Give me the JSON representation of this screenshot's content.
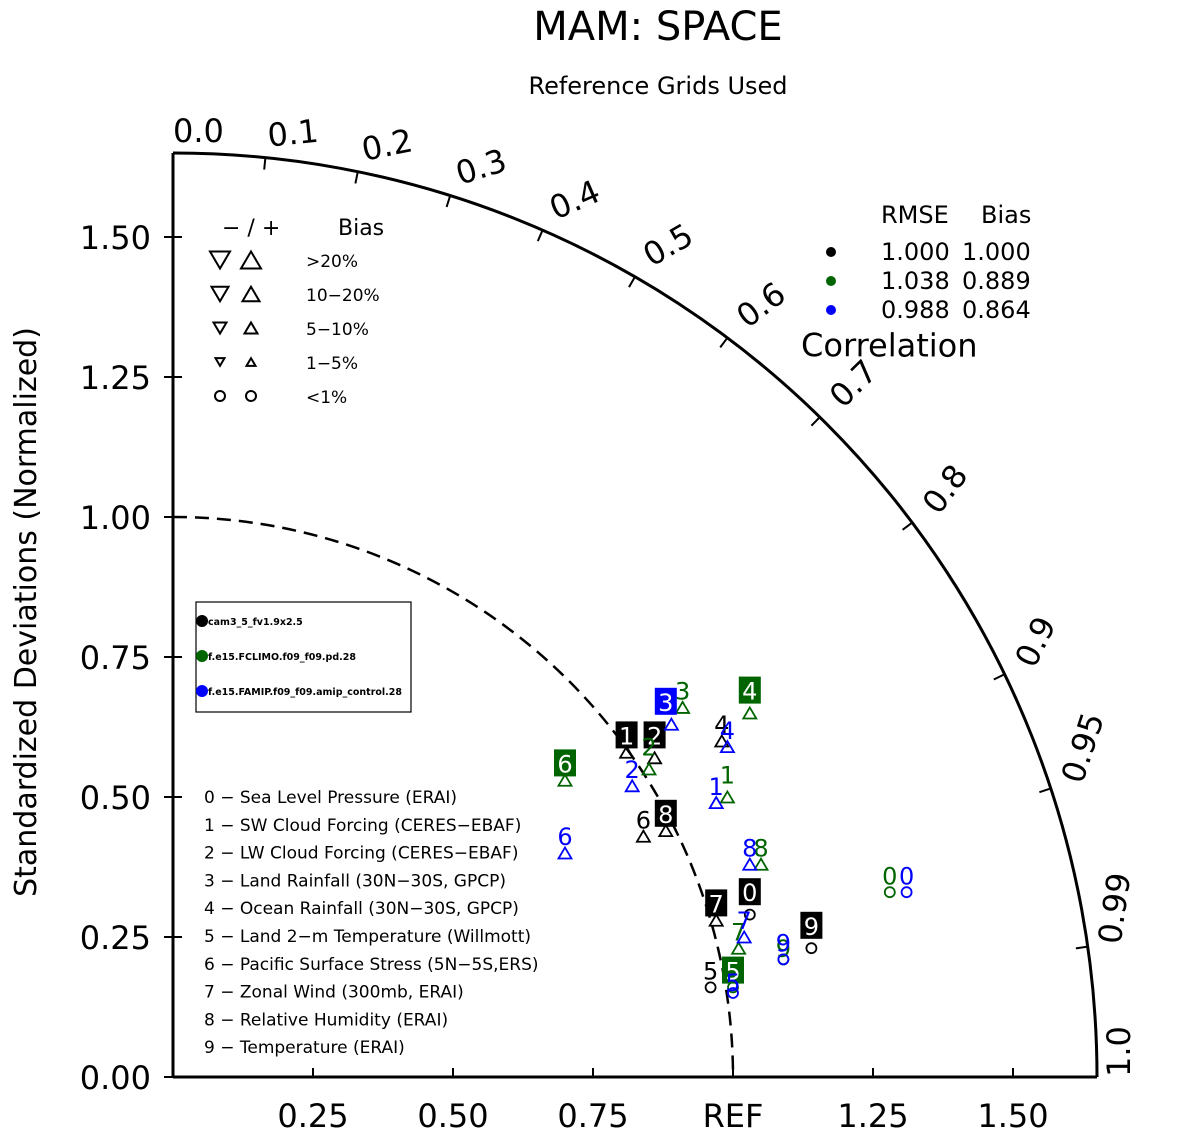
{
  "chart_data": {
    "type": "taylor",
    "title": "MAM: SPACE",
    "subtitle": "Reference Grids Used",
    "ylabel": "Standardized Deviations (Normalized)",
    "correlation_label": "Correlation",
    "ref_label": "REF",
    "std_range": [
      0,
      1.65
    ],
    "y_ticks": [
      "0.00",
      "0.25",
      "0.50",
      "0.75",
      "1.00",
      "1.25",
      "1.50"
    ],
    "x_ticks": [
      "0.25",
      "0.50",
      "0.75",
      "REF",
      "1.25",
      "1.50"
    ],
    "correlation_ticks": [
      "0.0",
      "0.1",
      "0.2",
      "0.3",
      "0.4",
      "0.5",
      "0.6",
      "0.7",
      "0.8",
      "0.9",
      "0.95",
      "0.99",
      "1.0"
    ],
    "bias_legend": {
      "header_signs": "− / +",
      "header_bias": "Bias",
      "rows": [
        {
          "label": ">20%",
          "shape": "triangle",
          "size": "xl"
        },
        {
          "label": "10−20%",
          "shape": "triangle",
          "size": "l"
        },
        {
          "label": "5−10%",
          "shape": "triangle",
          "size": "m"
        },
        {
          "label": "1−5%",
          "shape": "triangle",
          "size": "s"
        },
        {
          "label": "<1%",
          "shape": "circle",
          "size": "m"
        }
      ]
    },
    "rmse_table": {
      "header_rmse": "RMSE",
      "header_bias": "Bias",
      "rows": [
        {
          "color": "#000000",
          "rmse": "1.000",
          "bias": "1.000"
        },
        {
          "color": "#006400",
          "rmse": "1.038",
          "bias": "0.889"
        },
        {
          "color": "#0000ff",
          "rmse": "0.988",
          "bias": "0.864"
        }
      ]
    },
    "case_legend": [
      {
        "name": "cam3_5_fv1.9x2.5",
        "color": "#000000"
      },
      {
        "name": "f.e15.FCLIMO.f09_f09.pd.28",
        "color": "#006400"
      },
      {
        "name": "f.e15.FAMIP.f09_f09.amip_control.28",
        "color": "#0000ff"
      }
    ],
    "variables": [
      "0 − Sea Level Pressure (ERAI)",
      "1 − SW Cloud Forcing (CERES−EBAF)",
      "2 − LW Cloud Forcing (CERES−EBAF)",
      "3 − Land Rainfall (30N−30S, GPCP)",
      "4 − Ocean Rainfall (30N−30S, GPCP)",
      "5 − Land 2−m Temperature (Willmott)",
      "6 − Pacific Surface Stress (5N−5S,ERS)",
      "7 − Zonal Wind (300mb, ERAI)",
      "8 − Relative Humidity (ERAI)",
      "9 − Temperature (ERAI)"
    ],
    "points": [
      {
        "case": 0,
        "var": "0",
        "x": 1.03,
        "y": 0.33,
        "boxed": true,
        "marker": "circle",
        "mx": 1.03,
        "my": 0.29
      },
      {
        "case": 0,
        "var": "1",
        "x": 0.81,
        "y": 0.61,
        "boxed": true,
        "marker": "tri-up",
        "mx": 0.81,
        "my": 0.58
      },
      {
        "case": 0,
        "var": "2",
        "x": 0.86,
        "y": 0.61,
        "boxed": true,
        "marker": "tri-up",
        "mx": 0.86,
        "my": 0.57
      },
      {
        "case": 0,
        "var": "4",
        "x": 0.98,
        "y": 0.63,
        "boxed": false,
        "marker": "tri-up",
        "mx": 0.98,
        "my": 0.6
      },
      {
        "case": 0,
        "var": "5",
        "x": 0.96,
        "y": 0.19,
        "boxed": false,
        "marker": "circle",
        "mx": 0.96,
        "my": 0.16
      },
      {
        "case": 0,
        "var": "6",
        "x": 0.84,
        "y": 0.46,
        "boxed": false,
        "marker": "tri-up",
        "mx": 0.84,
        "my": 0.43
      },
      {
        "case": 0,
        "var": "7",
        "x": 0.97,
        "y": 0.31,
        "boxed": true,
        "marker": "tri-up",
        "mx": 0.97,
        "my": 0.28
      },
      {
        "case": 0,
        "var": "8",
        "x": 0.88,
        "y": 0.47,
        "boxed": true,
        "marker": "tri-up",
        "mx": 0.88,
        "my": 0.44
      },
      {
        "case": 0,
        "var": "9",
        "x": 1.14,
        "y": 0.27,
        "boxed": true,
        "marker": "circle",
        "mx": 1.14,
        "my": 0.23
      },
      {
        "case": 1,
        "var": "2",
        "x": 0.85,
        "y": 0.59,
        "boxed": false,
        "marker": "tri-up",
        "mx": 0.85,
        "my": 0.55
      },
      {
        "case": 1,
        "var": "3",
        "x": 0.91,
        "y": 0.69,
        "boxed": false,
        "marker": "tri-up",
        "mx": 0.91,
        "my": 0.66
      },
      {
        "case": 1,
        "var": "4",
        "x": 1.03,
        "y": 0.69,
        "boxed": true,
        "marker": "tri-up",
        "mx": 1.03,
        "my": 0.65
      },
      {
        "case": 1,
        "var": "6",
        "x": 0.7,
        "y": 0.56,
        "boxed": true,
        "marker": "tri-up",
        "mx": 0.7,
        "my": 0.53
      },
      {
        "case": 1,
        "var": "1",
        "x": 0.99,
        "y": 0.54,
        "boxed": false,
        "marker": "tri-up",
        "mx": 0.99,
        "my": 0.5
      },
      {
        "case": 1,
        "var": "8",
        "x": 1.05,
        "y": 0.41,
        "boxed": false,
        "marker": "tri-up",
        "mx": 1.05,
        "my": 0.38
      },
      {
        "case": 1,
        "var": "7",
        "x": 1.01,
        "y": 0.26,
        "boxed": false,
        "marker": "tri-up",
        "mx": 1.01,
        "my": 0.23
      },
      {
        "case": 1,
        "var": "5",
        "x": 1.0,
        "y": 0.19,
        "boxed": true,
        "marker": "circle",
        "mx": 1.0,
        "my": 0.16
      },
      {
        "case": 1,
        "var": "9",
        "x": 1.09,
        "y": 0.23,
        "boxed": false,
        "marker": "circle",
        "mx": 1.09,
        "my": 0.21
      },
      {
        "case": 1,
        "var": "0",
        "x": 1.28,
        "y": 0.36,
        "boxed": false,
        "marker": "circle",
        "mx": 1.28,
        "my": 0.33
      },
      {
        "case": 2,
        "var": "3",
        "x": 0.88,
        "y": 0.67,
        "boxed": true,
        "marker": "tri-up",
        "mx": 0.89,
        "my": 0.63
      },
      {
        "case": 2,
        "var": "2",
        "x": 0.82,
        "y": 0.55,
        "boxed": false,
        "marker": "tri-up",
        "mx": 0.82,
        "my": 0.52
      },
      {
        "case": 2,
        "var": "4",
        "x": 0.99,
        "y": 0.62,
        "boxed": false,
        "marker": "tri-up",
        "mx": 0.99,
        "my": 0.59
      },
      {
        "case": 2,
        "var": "1",
        "x": 0.97,
        "y": 0.52,
        "boxed": false,
        "marker": "tri-up",
        "mx": 0.97,
        "my": 0.49
      },
      {
        "case": 2,
        "var": "6",
        "x": 0.7,
        "y": 0.43,
        "boxed": false,
        "marker": "tri-up",
        "mx": 0.7,
        "my": 0.4
      },
      {
        "case": 2,
        "var": "8",
        "x": 1.03,
        "y": 0.41,
        "boxed": false,
        "marker": "tri-up",
        "mx": 1.03,
        "my": 0.38
      },
      {
        "case": 2,
        "var": "7",
        "x": 1.02,
        "y": 0.28,
        "boxed": false,
        "marker": "tri-up",
        "mx": 1.02,
        "my": 0.25
      },
      {
        "case": 2,
        "var": "5",
        "x": 1.0,
        "y": 0.17,
        "boxed": false,
        "marker": "circle",
        "mx": 1.0,
        "my": 0.15
      },
      {
        "case": 2,
        "var": "9",
        "x": 1.09,
        "y": 0.24,
        "boxed": false,
        "marker": "circle",
        "mx": 1.09,
        "my": 0.21
      },
      {
        "case": 2,
        "var": "0",
        "x": 1.31,
        "y": 0.36,
        "boxed": false,
        "marker": "circle",
        "mx": 1.31,
        "my": 0.33
      }
    ]
  }
}
